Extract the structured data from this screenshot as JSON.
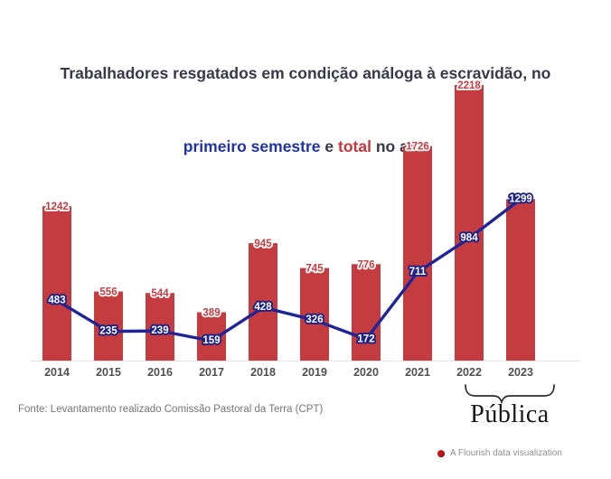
{
  "title": {
    "line1": "Trabalhadores resgatados em condição análoga à escravidão, no",
    "line2_blue": "primeiro semestre",
    "line2_and": " e ",
    "line2_red": "total",
    "line2_tail": " no ano"
  },
  "colors": {
    "bar": "#c43b40",
    "line": "#1f2596",
    "title_text": "#38384a",
    "title_blue": "#2133a0",
    "title_red": "#c2353c",
    "axis_line": "#e4e4e4"
  },
  "chart_data": {
    "type": "bar",
    "title": "Trabalhadores resgatados em condição análoga à escravidão, no primeiro semestre e total no ano",
    "categories": [
      "2014",
      "2015",
      "2016",
      "2017",
      "2018",
      "2019",
      "2020",
      "2021",
      "2022",
      "2023"
    ],
    "series": [
      {
        "name": "total no ano",
        "kind": "bar",
        "color": "#c43b40",
        "values": [
          1242,
          556,
          544,
          389,
          945,
          745,
          776,
          1726,
          2218,
          1299
        ],
        "label_visible": [
          true,
          true,
          true,
          true,
          true,
          true,
          true,
          true,
          true,
          false
        ]
      },
      {
        "name": "primeiro semestre",
        "kind": "line",
        "color": "#1f2596",
        "values": [
          483,
          235,
          239,
          159,
          428,
          326,
          172,
          711,
          984,
          1299
        ],
        "label_visible": [
          true,
          true,
          true,
          true,
          true,
          true,
          true,
          true,
          true,
          true
        ]
      }
    ],
    "xlabel": "",
    "ylabel": "",
    "ylim": [
      0,
      2218
    ],
    "grid": false,
    "legend": "none"
  },
  "footer": {
    "source": "Fonte: Levantamento realizado Comissão Pastoral da Terra (CPT)"
  },
  "branding": {
    "publica_wordmark": "Pública",
    "flourish_credit": "A Flourish data visualization"
  }
}
